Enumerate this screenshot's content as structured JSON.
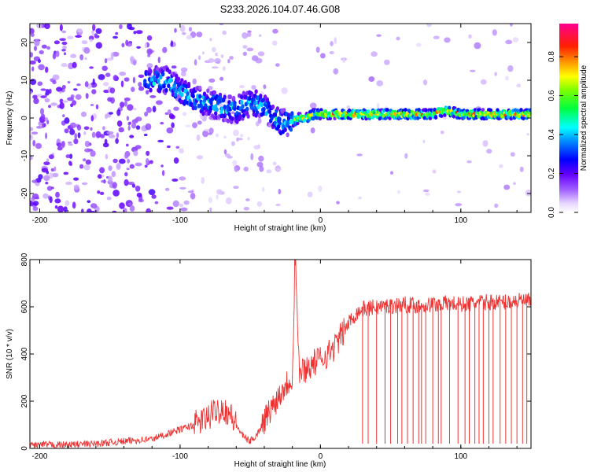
{
  "chart_data": [
    {
      "type": "heatmap",
      "title": "S233.2026.104.07.46.G08",
      "xlabel": "Height of straight line (km)",
      "ylabel": "Frequency (Hz)",
      "xlim": [
        -207,
        150
      ],
      "ylim": [
        -25,
        25
      ],
      "xticks": [
        -200,
        -100,
        0,
        100
      ],
      "yticks": [
        -20,
        -10,
        0,
        10,
        20
      ],
      "colorbar": {
        "label": "Normalized spectral amplitude",
        "range": [
          0,
          0.97
        ],
        "ticks": [
          0.0,
          0.2,
          0.4,
          0.6,
          0.8
        ],
        "colormap": [
          "#ffffff",
          "#d4b0ff",
          "#7a00ff",
          "#0000ff",
          "#00ffff",
          "#00ff00",
          "#ffff00",
          "#ff8000",
          "#ff0000",
          "#ff00a0"
        ]
      },
      "ridge": {
        "description": "dominant frequency track vs height",
        "x": [
          -110,
          -100,
          -90,
          -80,
          -70,
          -60,
          -50,
          -40,
          -30,
          -20,
          -15,
          -10,
          -5,
          0,
          20,
          40,
          60,
          80,
          90,
          100,
          120,
          150
        ],
        "y": [
          10,
          7,
          5,
          4,
          3,
          2,
          4,
          3,
          -1,
          -1,
          0,
          0,
          1,
          1,
          1,
          1,
          1,
          1,
          2,
          1,
          1,
          1
        ]
      }
    },
    {
      "type": "line",
      "xlabel": "Height of straight line (km)",
      "ylabel": "SNR (10 * v/v)",
      "xlim": [
        -207,
        150
      ],
      "ylim": [
        0,
        800
      ],
      "xticks": [
        -200,
        -100,
        0,
        100
      ],
      "yticks": [
        0,
        200,
        400,
        600,
        800
      ],
      "series": [
        {
          "name": "SNR",
          "color": "#ee3333",
          "x": [
            -207,
            -180,
            -160,
            -150,
            -140,
            -120,
            -110,
            -100,
            -90,
            -80,
            -75,
            -70,
            -65,
            -60,
            -55,
            -50,
            -45,
            -40,
            -35,
            -30,
            -25,
            -20,
            -18,
            -15,
            -10,
            -5,
            0,
            5,
            10,
            15,
            20,
            25,
            30,
            40,
            50,
            60,
            70,
            80,
            90,
            100,
            110,
            120,
            130,
            140,
            150
          ],
          "values": [
            15,
            15,
            20,
            25,
            30,
            40,
            60,
            80,
            100,
            130,
            160,
            170,
            150,
            100,
            50,
            30,
            60,
            120,
            170,
            220,
            270,
            300,
            800,
            320,
            340,
            360,
            380,
            400,
            430,
            480,
            530,
            570,
            590,
            600,
            605,
            610,
            605,
            610,
            615,
            610,
            615,
            620,
            620,
            625,
            625
          ]
        }
      ],
      "dropouts": {
        "description": "near-vertical dropouts to ~20 beyond 30 km",
        "x": [
          30,
          34,
          40,
          46,
          50,
          55,
          58,
          62,
          66,
          70,
          72,
          75,
          80,
          84,
          86,
          92,
          98,
          103,
          106,
          110,
          113,
          116,
          120,
          123,
          128,
          132,
          136,
          140,
          144,
          147
        ],
        "floor": 20
      }
    }
  ]
}
